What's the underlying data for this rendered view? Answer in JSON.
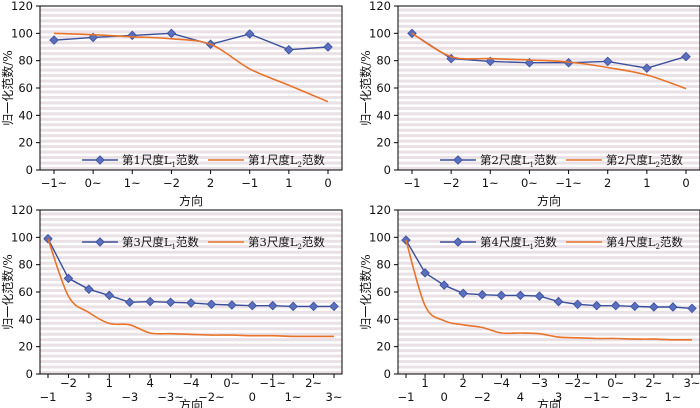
{
  "figure": {
    "xlabel": "方向",
    "ylabel": "归一化范数/%"
  },
  "colors": {
    "l1": "#3a4f9b",
    "l1_marker": "#5b6fbf",
    "l2": "#e8732a",
    "band": "#d9c9d2"
  },
  "chart_data": [
    {
      "type": "line",
      "title": "",
      "ylim": [
        0,
        120
      ],
      "yticks": [
        0,
        20,
        40,
        60,
        80,
        100,
        120
      ],
      "xticks": [
        "−1~",
        "0~",
        "1~",
        "−2",
        "2",
        "−1",
        "1",
        "0"
      ],
      "tick_row": "single",
      "legend": "bottom-right",
      "series": [
        {
          "name": "第1尺度L1范数",
          "name_pre": "第1尺度L",
          "name_sub": "1",
          "name_post": "范数",
          "marker": "diamond",
          "x": [
            0,
            1,
            2,
            3,
            4,
            5,
            6,
            7
          ],
          "values": [
            95,
            97,
            98.5,
            100,
            92,
            99.5,
            88,
            90
          ]
        },
        {
          "name": "第1尺度L2范数",
          "name_pre": "第1尺度L",
          "name_sub": "2",
          "name_post": "范数",
          "marker": "none",
          "x": [
            0,
            1,
            2,
            3,
            4,
            5,
            6,
            7
          ],
          "values": [
            100,
            99,
            97.5,
            96,
            92,
            74,
            62,
            50
          ]
        }
      ]
    },
    {
      "type": "line",
      "title": "",
      "ylim": [
        0,
        120
      ],
      "yticks": [
        0,
        20,
        40,
        60,
        80,
        100,
        120
      ],
      "xticks": [
        "−1",
        "−2",
        "1~",
        "0~",
        "−1~",
        "2",
        "1",
        "0"
      ],
      "tick_row": "single",
      "legend": "bottom-right",
      "series": [
        {
          "name": "第2尺度L1范数",
          "name_pre": "第2尺度L",
          "name_sub": "1",
          "name_post": "范数",
          "marker": "diamond",
          "x": [
            0,
            1,
            2,
            3,
            4,
            5,
            6,
            7
          ],
          "values": [
            100,
            81.5,
            79.5,
            78.5,
            78.5,
            79.5,
            74.5,
            83
          ]
        },
        {
          "name": "第2尺度L2范数",
          "name_pre": "第2尺度L",
          "name_sub": "2",
          "name_post": "范数",
          "marker": "none",
          "x": [
            0,
            1,
            2,
            3,
            4,
            5,
            6,
            7
          ],
          "values": [
            100,
            83,
            81.5,
            80.5,
            79,
            75,
            69.5,
            59.5
          ]
        }
      ]
    },
    {
      "type": "line",
      "title": "",
      "ylim": [
        0,
        120
      ],
      "yticks": [
        0,
        20,
        40,
        60,
        80,
        100,
        120
      ],
      "xticks": [
        "−1",
        "−2",
        "3",
        "1",
        "−3",
        "4",
        "−3~",
        "−4",
        "−2~",
        "0~",
        "0",
        "−1~",
        "1~",
        "2~",
        "3~"
      ],
      "tick_row": "staggered",
      "legend": "top-right",
      "series": [
        {
          "name": "第3尺度L1范数",
          "name_pre": "第3尺度L",
          "name_sub": "1",
          "name_post": "范数",
          "marker": "diamond",
          "x": [
            0,
            1,
            2,
            3,
            4,
            5,
            6,
            7,
            8,
            9,
            10,
            11,
            12,
            13,
            14
          ],
          "values": [
            99,
            70,
            62,
            57.5,
            52.5,
            53,
            52.5,
            52,
            51,
            50.5,
            50,
            50,
            49.5,
            49.5,
            49.5
          ]
        },
        {
          "name": "第3尺度L2范数",
          "name_pre": "第3尺度L",
          "name_sub": "2",
          "name_post": "范数",
          "marker": "none",
          "x": [
            0,
            1,
            2,
            3,
            4,
            5,
            6,
            7,
            8,
            9,
            10,
            11,
            12,
            13,
            14
          ],
          "values": [
            99,
            57,
            45,
            37,
            36,
            30,
            29.5,
            29,
            28.5,
            28.5,
            28,
            28,
            27.5,
            27.5,
            27.5
          ]
        }
      ]
    },
    {
      "type": "line",
      "title": "",
      "ylim": [
        0,
        120
      ],
      "yticks": [
        0,
        20,
        40,
        60,
        80,
        100,
        120
      ],
      "xticks": [
        "−1",
        "1",
        "0",
        "2",
        "−2",
        "−4",
        "4",
        "−3",
        "3",
        "−2~",
        "−1~",
        "0~",
        "−3~",
        "2~",
        "1~",
        "3~"
      ],
      "tick_row": "staggered",
      "legend": "top-right",
      "series": [
        {
          "name": "第4尺度L1范数",
          "name_pre": "第4尺度L",
          "name_sub": "1",
          "name_post": "范数",
          "marker": "diamond",
          "x": [
            0,
            1,
            2,
            3,
            4,
            5,
            6,
            7,
            8,
            9,
            10,
            11,
            12,
            13,
            14,
            15
          ],
          "values": [
            98,
            74,
            65,
            59,
            58,
            57.5,
            57.5,
            57,
            53,
            51,
            50,
            50,
            49.5,
            49,
            49,
            48
          ]
        },
        {
          "name": "第4尺度L2范数",
          "name_pre": "第4尺度L",
          "name_sub": "2",
          "name_post": "范数",
          "marker": "none",
          "x": [
            0,
            1,
            2,
            3,
            4,
            5,
            6,
            7,
            8,
            9,
            10,
            11,
            12,
            13,
            14,
            15
          ],
          "values": [
            98,
            50,
            39,
            36,
            34,
            30,
            30,
            29.5,
            27,
            26.5,
            26,
            26,
            25.5,
            25.5,
            25,
            25
          ]
        }
      ]
    }
  ]
}
